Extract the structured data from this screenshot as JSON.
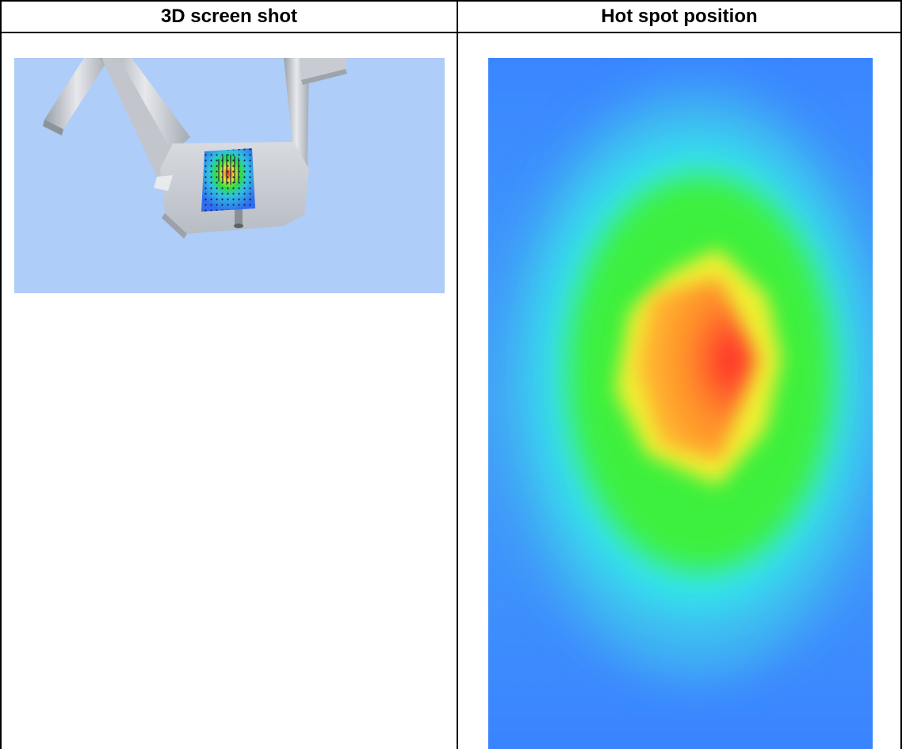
{
  "table": {
    "columns": [
      {
        "header": "3D screen shot"
      },
      {
        "header": "Hot spot position"
      }
    ]
  },
  "images": {
    "screenshot_3d": {
      "icon": "3d-model-render-with-sensor-grid",
      "background_color": "#aecdf8"
    },
    "hotspot_map": {
      "icon": "heatmap-hot-spot",
      "colors": [
        "#3d87ff",
        "#32e6ee",
        "#3cf03c",
        "#f2f030",
        "#ff9a2a",
        "#ff3030"
      ]
    }
  }
}
